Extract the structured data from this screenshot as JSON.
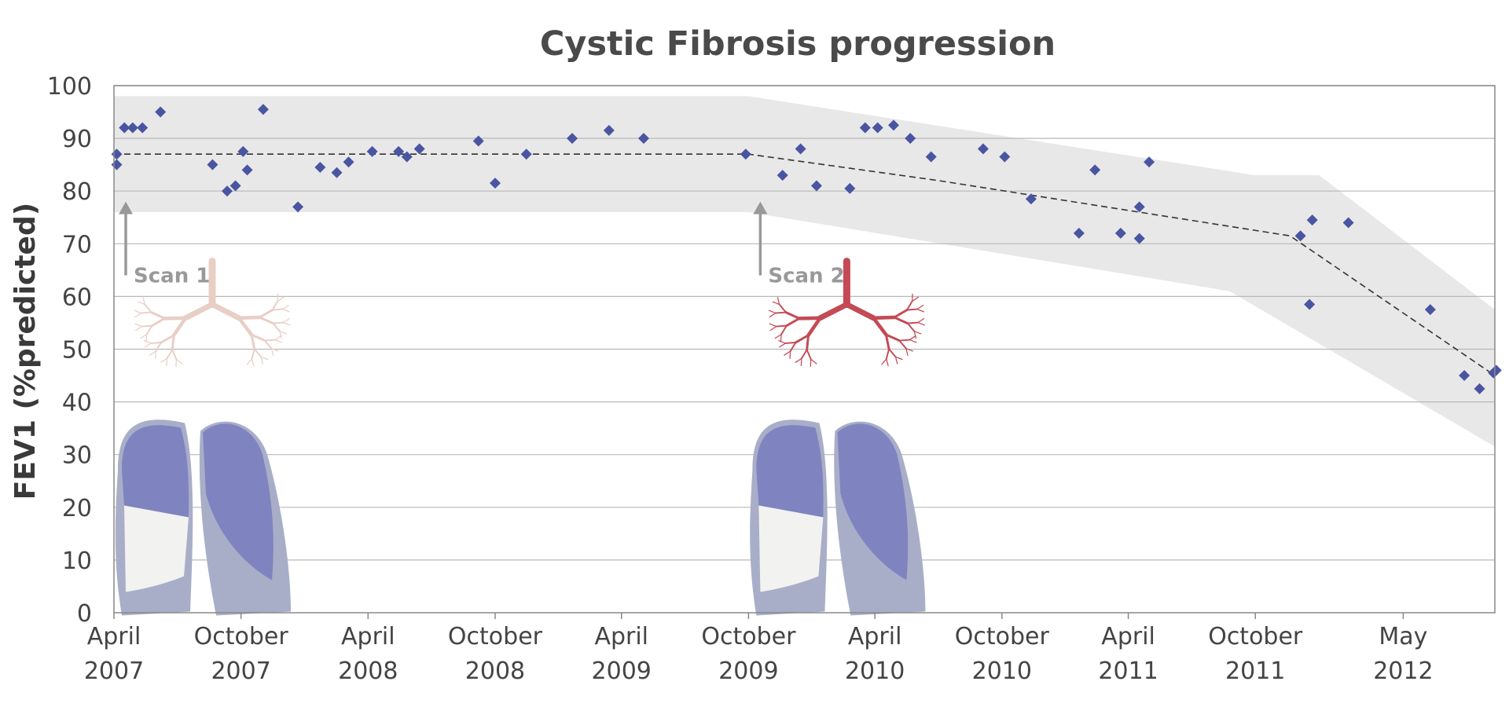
{
  "chart_data": {
    "type": "scatter",
    "title": "Cystic Fibrosis progression",
    "ylabel": "FEV1 (%predicted)",
    "xlabel": "",
    "ylim": [
      0,
      100
    ],
    "yticks": [
      0,
      10,
      20,
      30,
      40,
      50,
      60,
      70,
      80,
      90,
      100
    ],
    "xlim": [
      "2007-04-01",
      "2012-09-10"
    ],
    "xticks": [
      {
        "date": "2007-04-01",
        "label": [
          "April",
          "2007"
        ]
      },
      {
        "date": "2007-10-01",
        "label": [
          "October",
          "2007"
        ]
      },
      {
        "date": "2008-04-01",
        "label": [
          "April",
          "2008"
        ]
      },
      {
        "date": "2008-10-01",
        "label": [
          "October",
          "2008"
        ]
      },
      {
        "date": "2009-04-01",
        "label": [
          "April",
          "2009"
        ]
      },
      {
        "date": "2009-10-01",
        "label": [
          "October",
          "2009"
        ]
      },
      {
        "date": "2010-04-01",
        "label": [
          "April",
          "2010"
        ]
      },
      {
        "date": "2010-10-01",
        "label": [
          "October",
          "2010"
        ]
      },
      {
        "date": "2011-04-01",
        "label": [
          "April",
          "2011"
        ]
      },
      {
        "date": "2011-10-01",
        "label": [
          "October",
          "2011"
        ]
      },
      {
        "date": "2012-05-01",
        "label": [
          "May",
          "2012"
        ]
      }
    ],
    "grid": true,
    "series": [
      {
        "points": [
          {
            "x": "2007-04-05",
            "y": 87
          },
          {
            "x": "2007-04-05",
            "y": 85
          },
          {
            "x": "2007-04-16",
            "y": 92
          },
          {
            "x": "2007-04-28",
            "y": 92
          },
          {
            "x": "2007-05-12",
            "y": 92
          },
          {
            "x": "2007-06-07",
            "y": 95
          },
          {
            "x": "2007-08-21",
            "y": 85
          },
          {
            "x": "2007-09-11",
            "y": 80
          },
          {
            "x": "2007-09-23",
            "y": 81
          },
          {
            "x": "2007-10-04",
            "y": 87.5
          },
          {
            "x": "2007-10-10",
            "y": 84
          },
          {
            "x": "2007-11-02",
            "y": 95.5
          },
          {
            "x": "2007-12-22",
            "y": 77
          },
          {
            "x": "2008-01-23",
            "y": 84.5
          },
          {
            "x": "2008-02-16",
            "y": 83.5
          },
          {
            "x": "2008-03-04",
            "y": 85.5
          },
          {
            "x": "2008-04-07",
            "y": 87.5
          },
          {
            "x": "2008-05-15",
            "y": 87.5
          },
          {
            "x": "2008-05-27",
            "y": 86.5
          },
          {
            "x": "2008-06-14",
            "y": 88
          },
          {
            "x": "2008-09-07",
            "y": 89.5
          },
          {
            "x": "2008-10-01",
            "y": 81.5
          },
          {
            "x": "2008-11-15",
            "y": 87
          },
          {
            "x": "2009-01-20",
            "y": 90
          },
          {
            "x": "2009-03-14",
            "y": 91.5
          },
          {
            "x": "2009-05-03",
            "y": 90
          },
          {
            "x": "2009-09-27",
            "y": 87
          },
          {
            "x": "2009-11-19",
            "y": 83
          },
          {
            "x": "2009-12-15",
            "y": 88
          },
          {
            "x": "2010-01-07",
            "y": 81
          },
          {
            "x": "2010-02-24",
            "y": 80.5
          },
          {
            "x": "2010-03-18",
            "y": 92
          },
          {
            "x": "2010-04-05",
            "y": 92
          },
          {
            "x": "2010-04-28",
            "y": 92.5
          },
          {
            "x": "2010-05-22",
            "y": 90
          },
          {
            "x": "2010-06-21",
            "y": 86.5
          },
          {
            "x": "2010-09-04",
            "y": 88
          },
          {
            "x": "2010-10-05",
            "y": 86.5
          },
          {
            "x": "2010-11-12",
            "y": 78.5
          },
          {
            "x": "2011-01-20",
            "y": 72
          },
          {
            "x": "2011-02-12",
            "y": 84
          },
          {
            "x": "2011-03-21",
            "y": 72
          },
          {
            "x": "2011-04-17",
            "y": 77
          },
          {
            "x": "2011-04-17",
            "y": 71
          },
          {
            "x": "2011-05-01",
            "y": 85.5
          },
          {
            "x": "2011-12-05",
            "y": 71.5
          },
          {
            "x": "2011-12-18",
            "y": 58.5
          },
          {
            "x": "2011-12-22",
            "y": 74.5
          },
          {
            "x": "2012-02-12",
            "y": 74
          },
          {
            "x": "2012-06-09",
            "y": 57.5
          },
          {
            "x": "2012-07-28",
            "y": 45
          },
          {
            "x": "2012-08-19",
            "y": 42.5
          },
          {
            "x": "2012-09-08",
            "y": 45.5
          },
          {
            "x": "2012-09-12",
            "y": 46
          }
        ]
      }
    ],
    "trend_line": [
      {
        "x": "2007-04-01",
        "y": 87
      },
      {
        "x": "2009-10-01",
        "y": 87
      },
      {
        "x": "2010-07-01",
        "y": 82
      },
      {
        "x": "2011-11-20",
        "y": 71.5
      },
      {
        "x": "2012-09-10",
        "y": 45
      }
    ],
    "band_upper": [
      {
        "x": "2007-04-01",
        "y": 98
      },
      {
        "x": "2009-10-01",
        "y": 98
      },
      {
        "x": "2011-10-01",
        "y": 83
      },
      {
        "x": "2012-01-01",
        "y": 83
      },
      {
        "x": "2012-09-10",
        "y": 57.5
      }
    ],
    "band_lower": [
      {
        "x": "2007-04-01",
        "y": 76
      },
      {
        "x": "2009-10-01",
        "y": 76
      },
      {
        "x": "2011-08-25",
        "y": 61
      },
      {
        "x": "2012-09-10",
        "y": 31.5
      }
    ],
    "annotations": [
      {
        "label": "Scan 1",
        "x": "2007-04-18",
        "y": 64,
        "arrow_to_y": 78,
        "airway_color": "#e8cfc6",
        "lung_color": "#7f84c0"
      },
      {
        "label": "Scan 2",
        "x": "2009-10-18",
        "y": 64,
        "arrow_to_y": 78,
        "airway_color": "#c44a55",
        "lung_color": "#7f84c0"
      }
    ],
    "colors": {
      "marker": "#4a55a2",
      "band": "#e8e8e8",
      "trend": "#333333",
      "grid": "#b8b8b8",
      "arrow": "#999999",
      "lung_lower": "#f2f2f0",
      "lung_back": "#a9aec8"
    }
  }
}
